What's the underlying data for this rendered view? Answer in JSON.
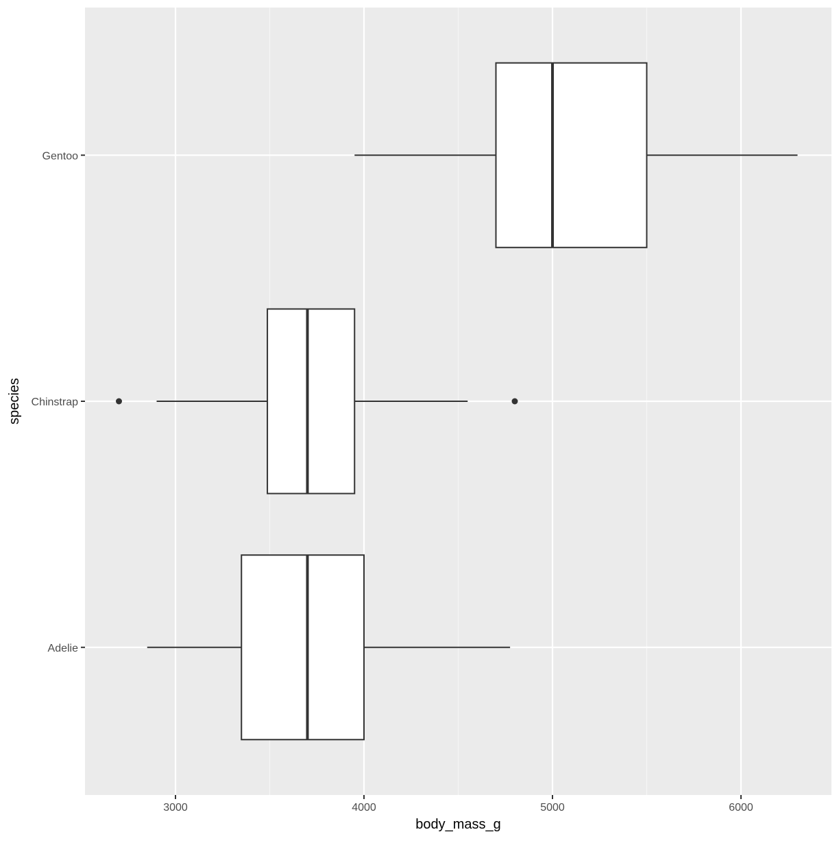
{
  "chart_data": {
    "type": "boxplot",
    "orientation": "horizontal",
    "xlabel": "body_mass_g",
    "ylabel": "species",
    "xlim": [
      2520,
      6480
    ],
    "xticks": [
      3000,
      4000,
      5000,
      6000
    ],
    "xtick_labels": [
      "3000",
      "4000",
      "5000",
      "6000"
    ],
    "categories": [
      "Adelie",
      "Chinstrap",
      "Gentoo"
    ],
    "boxes": [
      {
        "category": "Adelie",
        "whisker_low": 2850,
        "q1": 3350,
        "median": 3700,
        "q3": 4000,
        "whisker_high": 4775,
        "outliers": []
      },
      {
        "category": "Chinstrap",
        "whisker_low": 2900,
        "q1": 3487.5,
        "median": 3700,
        "q3": 3950,
        "whisker_high": 4550,
        "outliers": [
          2700,
          4800
        ]
      },
      {
        "category": "Gentoo",
        "whisker_low": 3950,
        "q1": 4700,
        "median": 5000,
        "q3": 5500,
        "whisker_high": 6300,
        "outliers": []
      }
    ],
    "grid": true,
    "legend": "none"
  },
  "colors": {
    "panel_background": "#ebebeb",
    "grid_major": "#ffffff",
    "grid_minor": "#f5f5f5",
    "box_fill": "#ffffff",
    "box_stroke": "#333333",
    "tick_text": "#4d4d4d",
    "title_text": "#000000"
  }
}
